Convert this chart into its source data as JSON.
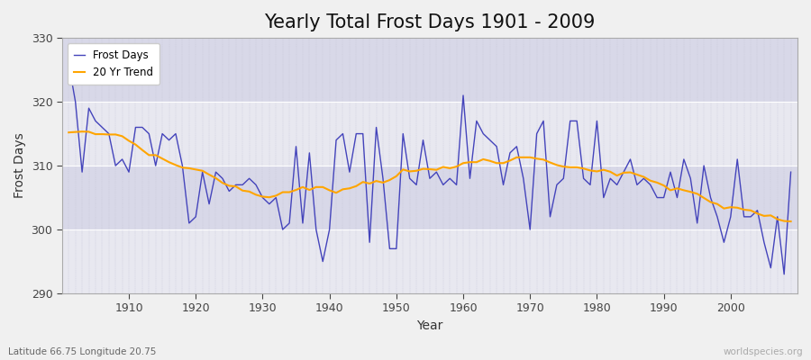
{
  "title": "Yearly Total Frost Days 1901 - 2009",
  "xlabel": "Year",
  "ylabel": "Frost Days",
  "subtitle": "Latitude 66.75 Longitude 20.75",
  "watermark": "worldspecies.org",
  "years": [
    1901,
    1902,
    1903,
    1904,
    1905,
    1906,
    1907,
    1908,
    1909,
    1910,
    1911,
    1912,
    1913,
    1914,
    1915,
    1916,
    1917,
    1918,
    1919,
    1920,
    1921,
    1922,
    1923,
    1924,
    1925,
    1926,
    1927,
    1928,
    1929,
    1930,
    1931,
    1932,
    1933,
    1934,
    1935,
    1936,
    1937,
    1938,
    1939,
    1940,
    1941,
    1942,
    1943,
    1944,
    1945,
    1946,
    1947,
    1948,
    1949,
    1950,
    1951,
    1952,
    1953,
    1954,
    1955,
    1956,
    1957,
    1958,
    1959,
    1960,
    1961,
    1962,
    1963,
    1964,
    1965,
    1966,
    1967,
    1968,
    1969,
    1970,
    1971,
    1972,
    1973,
    1974,
    1975,
    1976,
    1977,
    1978,
    1979,
    1980,
    1981,
    1982,
    1983,
    1984,
    1985,
    1986,
    1987,
    1988,
    1989,
    1990,
    1991,
    1992,
    1993,
    1994,
    1995,
    1996,
    1997,
    1998,
    1999,
    2000,
    2001,
    2002,
    2003,
    2004,
    2005,
    2006,
    2007,
    2008,
    2009
  ],
  "frost_days": [
    326,
    320,
    309,
    319,
    317,
    316,
    315,
    310,
    311,
    309,
    316,
    316,
    315,
    310,
    315,
    314,
    315,
    310,
    301,
    302,
    309,
    304,
    309,
    308,
    306,
    307,
    307,
    308,
    307,
    305,
    304,
    305,
    300,
    301,
    313,
    301,
    312,
    300,
    295,
    300,
    314,
    315,
    309,
    315,
    315,
    298,
    316,
    308,
    297,
    297,
    315,
    308,
    307,
    314,
    308,
    309,
    307,
    308,
    307,
    321,
    308,
    317,
    315,
    314,
    313,
    307,
    312,
    313,
    308,
    300,
    315,
    317,
    302,
    307,
    308,
    317,
    317,
    308,
    307,
    317,
    305,
    308,
    307,
    309,
    311,
    307,
    308,
    307,
    305,
    305,
    309,
    305,
    311,
    308,
    301,
    310,
    305,
    302,
    298,
    302,
    311,
    302,
    302,
    303,
    298,
    294,
    302,
    293,
    309
  ],
  "line_color": "#4444bb",
  "trend_color": "#ffa500",
  "bg_color": "#f0f0f0",
  "plot_bg_color_light": "#e8e8f0",
  "plot_bg_color_dark": "#d8d8e8",
  "grid_color_v": "#c8c8d8",
  "grid_color_h": "#ffffff",
  "ylim": [
    290,
    330
  ],
  "xlim": [
    1900,
    2010
  ],
  "yticks": [
    290,
    300,
    310,
    320,
    330
  ],
  "xticks": [
    1910,
    1920,
    1930,
    1940,
    1950,
    1960,
    1970,
    1980,
    1990,
    2000
  ],
  "legend_labels": [
    "Frost Days",
    "20 Yr Trend"
  ],
  "title_fontsize": 15,
  "axis_fontsize": 10,
  "tick_fontsize": 9,
  "band_boundaries": [
    290,
    300,
    310,
    320,
    330
  ]
}
